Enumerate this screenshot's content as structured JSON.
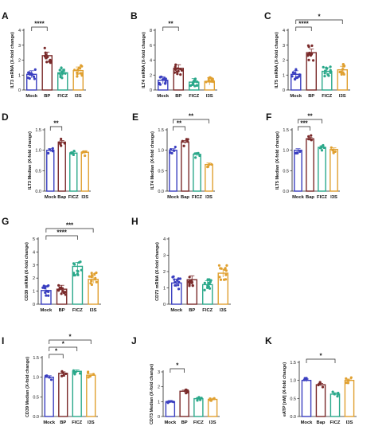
{
  "chart_data": [
    {
      "panel": "A",
      "type": "bar",
      "categories": [
        "Mock",
        "BP",
        "FICZ",
        "I3S"
      ],
      "values": [
        1.05,
        2.3,
        1.15,
        1.3
      ],
      "colors": [
        "#3a3fc0",
        "#7a2a2a",
        "#2aa88a",
        "#e0a030"
      ],
      "ylabel": "ILT3 mRNA (X-fold change)",
      "yticks": [
        "0",
        "1",
        "2",
        "3",
        "4"
      ],
      "ylim": [
        0,
        4
      ],
      "sig": [
        {
          "from": 0,
          "to": 1,
          "label": "****"
        }
      ]
    },
    {
      "panel": "B",
      "type": "bar",
      "categories": [
        "Mock",
        "BP",
        "FICZ",
        "I3S"
      ],
      "values": [
        1.3,
        2.9,
        1.05,
        1.15
      ],
      "colors": [
        "#3a3fc0",
        "#7a2a2a",
        "#2aa88a",
        "#e0a030"
      ],
      "ylabel": "ILT4 mRNA (X-fold change)",
      "yticks": [
        "0",
        "2",
        "4",
        "6",
        "8"
      ],
      "ylim": [
        0,
        8
      ],
      "sig": [
        {
          "from": 0,
          "to": 1,
          "label": "**"
        }
      ]
    },
    {
      "panel": "C",
      "type": "bar",
      "categories": [
        "Mock",
        "BP",
        "FICZ",
        "I3S"
      ],
      "values": [
        1.05,
        2.5,
        1.25,
        1.35
      ],
      "colors": [
        "#3a3fc0",
        "#7a2a2a",
        "#2aa88a",
        "#e0a030"
      ],
      "ylabel": "ILT5 mRNA (X-fold change)",
      "yticks": [
        "0",
        "1",
        "2",
        "3",
        "4"
      ],
      "ylim": [
        0,
        4
      ],
      "sig": [
        {
          "from": 0,
          "to": 1,
          "label": "****"
        },
        {
          "from": 0,
          "to": 3,
          "label": "*"
        }
      ]
    },
    {
      "panel": "D",
      "type": "bar",
      "categories": [
        "Mock",
        "Bap",
        "FICZ",
        "I3S"
      ],
      "values": [
        1.0,
        1.2,
        0.93,
        0.95
      ],
      "colors": [
        "#3a3fc0",
        "#7a2a2a",
        "#2aa88a",
        "#e0a030"
      ],
      "ylabel": "ILT3 Median (X-fold change)",
      "yticks": [
        "0.0",
        "0.5",
        "1.0",
        "1.5"
      ],
      "ylim": [
        0,
        1.5
      ],
      "sig": [
        {
          "from": 0,
          "to": 1,
          "label": "**"
        }
      ]
    },
    {
      "panel": "E",
      "type": "bar",
      "categories": [
        "Mock",
        "Bap",
        "FICZ",
        "I3S"
      ],
      "values": [
        1.0,
        1.2,
        0.9,
        0.65
      ],
      "colors": [
        "#3a3fc0",
        "#7a2a2a",
        "#2aa88a",
        "#e0a030"
      ],
      "ylabel": "ILT4 Median (X-fold change)",
      "yticks": [
        "0.0",
        "0.5",
        "1.0",
        "1.5"
      ],
      "ylim": [
        0,
        1.5
      ],
      "sig": [
        {
          "from": 0,
          "to": 1,
          "label": "**"
        },
        {
          "from": 0,
          "to": 3,
          "label": "**"
        }
      ]
    },
    {
      "panel": "F",
      "type": "bar",
      "categories": [
        "Mock",
        "Bap",
        "FICZ",
        "I3S"
      ],
      "values": [
        1.0,
        1.28,
        1.07,
        1.02
      ],
      "colors": [
        "#3a3fc0",
        "#7a2a2a",
        "#2aa88a",
        "#e0a030"
      ],
      "ylabel": "ILT5 Median (X-fold change)",
      "yticks": [
        "0.0",
        "0.5",
        "1.0",
        "1.5"
      ],
      "ylim": [
        0,
        1.5
      ],
      "sig": [
        {
          "from": 0,
          "to": 1,
          "label": "***"
        },
        {
          "from": 0,
          "to": 2,
          "label": "**"
        }
      ]
    },
    {
      "panel": "G",
      "type": "bar",
      "categories": [
        "Mock",
        "BP",
        "FICZ",
        "I3S"
      ],
      "values": [
        1.05,
        1.15,
        2.9,
        1.9
      ],
      "colors": [
        "#3a3fc0",
        "#7a2a2a",
        "#2aa88a",
        "#e0a030"
      ],
      "ylabel": "CD39 mRNA (X-fold change)",
      "yticks": [
        "0",
        "1",
        "2",
        "3",
        "4",
        "5"
      ],
      "ylim": [
        0,
        5
      ],
      "sig": [
        {
          "from": 0,
          "to": 2,
          "label": "****"
        },
        {
          "from": 0,
          "to": 3,
          "label": "***"
        }
      ]
    },
    {
      "panel": "H",
      "type": "bar",
      "categories": [
        "Mock",
        "BP",
        "FICZ",
        "I3S"
      ],
      "values": [
        1.3,
        1.5,
        1.2,
        1.9
      ],
      "colors": [
        "#3a3fc0",
        "#7a2a2a",
        "#2aa88a",
        "#e0a030"
      ],
      "ylabel": "CD73 mRNA (X-fold change)",
      "yticks": [
        "0",
        "1",
        "2",
        "3",
        "4"
      ],
      "ylim": [
        0,
        4
      ],
      "sig": []
    },
    {
      "panel": "I",
      "type": "bar",
      "categories": [
        "Mock",
        "BP",
        "FICZ",
        "I3S"
      ],
      "values": [
        1.0,
        1.1,
        1.15,
        1.05
      ],
      "colors": [
        "#3a3fc0",
        "#7a2a2a",
        "#2aa88a",
        "#e0a030"
      ],
      "ylabel": "CD39 Median (X-fold change)",
      "yticks": [
        "0.0",
        "0.5",
        "1.0",
        "1.5"
      ],
      "ylim": [
        0,
        1.5
      ],
      "sig": [
        {
          "from": 0,
          "to": 1,
          "label": "*"
        },
        {
          "from": 0,
          "to": 2,
          "label": "*"
        },
        {
          "from": 0,
          "to": 3,
          "label": "*"
        }
      ]
    },
    {
      "panel": "J",
      "type": "bar",
      "categories": [
        "Mock",
        "BP",
        "FICZ",
        "I3S"
      ],
      "values": [
        1.0,
        1.7,
        1.2,
        1.15
      ],
      "colors": [
        "#3a3fc0",
        "#7a2a2a",
        "#2aa88a",
        "#e0a030"
      ],
      "ylabel": "CD73 Median (X-fold change)",
      "yticks": [
        "0",
        "1",
        "2",
        "3"
      ],
      "ylim": [
        0,
        3
      ],
      "sig": [
        {
          "from": 0,
          "to": 1,
          "label": "*"
        }
      ]
    },
    {
      "panel": "K",
      "type": "bar",
      "categories": [
        "Mock",
        "Bap",
        "FICZ",
        "I3S"
      ],
      "values": [
        1.0,
        0.88,
        0.62,
        1.0
      ],
      "colors": [
        "#3a3fc0",
        "#7a2a2a",
        "#2aa88a",
        "#e0a030"
      ],
      "ylabel": "eATP [nM] (X-fold change)",
      "yticks": [
        "0.0",
        "0.5",
        "1.0",
        "1.5"
      ],
      "ylim": [
        0,
        1.5
      ],
      "sig": [
        {
          "from": 0,
          "to": 2,
          "label": "*"
        }
      ]
    }
  ]
}
